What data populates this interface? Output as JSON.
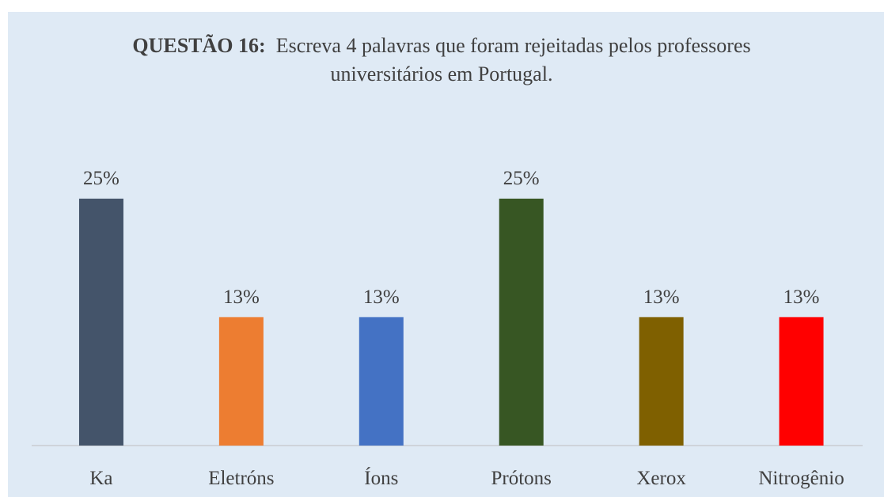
{
  "chart_data": {
    "type": "bar",
    "title_prefix": "QUESTÃO 16:",
    "title": "Escreva 4 palavras que foram rejeitadas pelos professores universitários em Portugal.",
    "categories": [
      "Ka",
      "Eletróns",
      "Íons",
      "Prótons",
      "Xerox",
      "Nitrogênio"
    ],
    "values": [
      25,
      13,
      13,
      25,
      13,
      13
    ],
    "value_labels": [
      "25%",
      "13%",
      "13%",
      "25%",
      "13%",
      "13%"
    ],
    "colors": [
      "#44546a",
      "#ed7d31",
      "#4472c4",
      "#375623",
      "#7f6000",
      "#ff0000"
    ]
  }
}
